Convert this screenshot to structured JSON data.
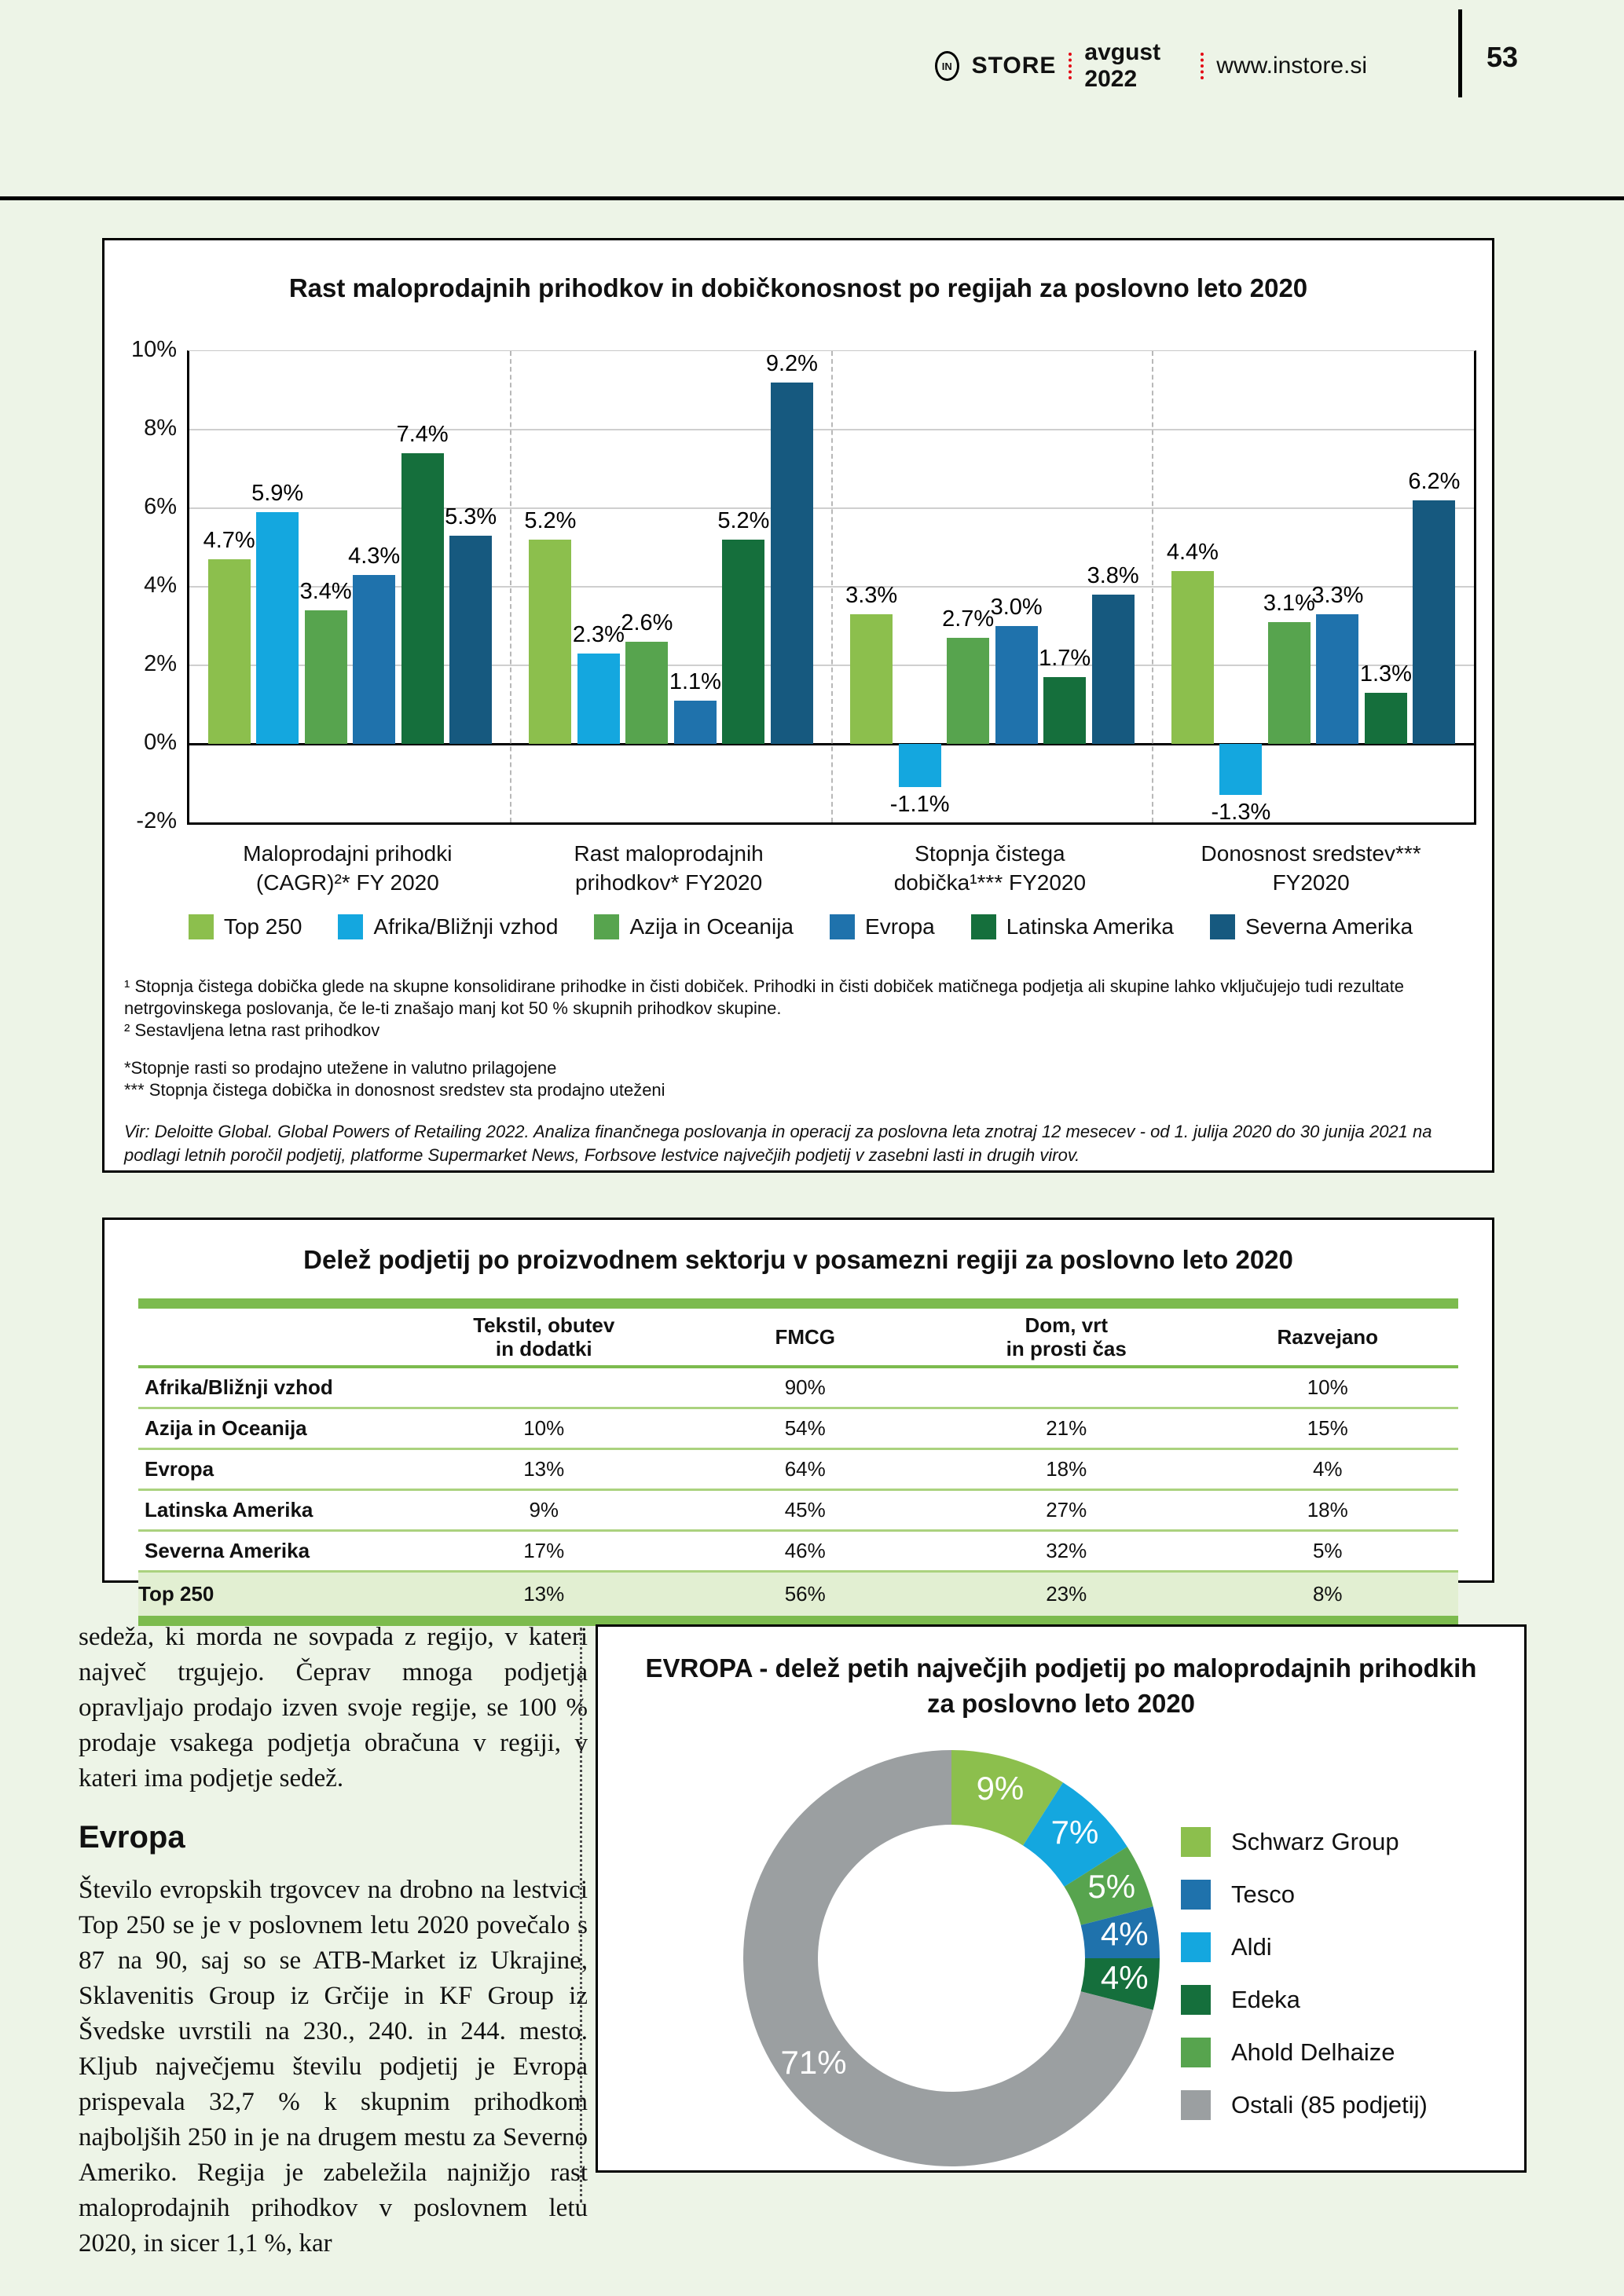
{
  "header": {
    "logo_text": "IN",
    "brand": "STORE",
    "date": "avgust 2022",
    "website": "www.instore.si",
    "page_number": "53"
  },
  "chart_data": [
    {
      "type": "bar",
      "title": "Rast maloprodajnih prihodkov in dobičkonosnost po regijah za poslovno leto 2020",
      "categories": [
        [
          "Maloprodajni prihodki",
          "(CAGR)²* FY 2020"
        ],
        [
          "Rast maloprodajnih",
          "prihodkov* FY2020"
        ],
        [
          "Stopnja čistega",
          "dobička¹*** FY2020"
        ],
        [
          "Donosnost sredstev***",
          "FY2020"
        ]
      ],
      "series": [
        {
          "name": "Top 250",
          "color": "#8CBF4D",
          "values": [
            4.7,
            5.2,
            3.3,
            4.4
          ]
        },
        {
          "name": "Afrika/Bližnji vzhod",
          "color": "#14A7DF",
          "values": [
            5.9,
            2.3,
            -1.1,
            -1.3
          ]
        },
        {
          "name": "Azija in Oceanija",
          "color": "#57A44E",
          "values": [
            3.4,
            2.6,
            2.7,
            3.1
          ]
        },
        {
          "name": "Evropa",
          "color": "#1F72AC",
          "values": [
            4.3,
            1.1,
            3.0,
            3.3
          ]
        },
        {
          "name": "Latinska Amerika",
          "color": "#156F3C",
          "values": [
            7.4,
            5.2,
            1.7,
            1.3
          ]
        },
        {
          "name": "Severna Amerika",
          "color": "#16597F",
          "values": [
            5.3,
            9.2,
            3.8,
            6.2
          ]
        }
      ],
      "ylim": [
        -2,
        10
      ],
      "yticks": [
        10,
        8,
        6,
        4,
        2,
        0,
        -2
      ],
      "unit": "%",
      "grid": true,
      "legend_position": "bottom"
    },
    {
      "type": "pie",
      "subtype": "donut",
      "title_line1": "EVROPA - delež petih največjih podjetij po maloprodajnih prihodkih",
      "title_line2": "za poslovno leto 2020",
      "slices": [
        {
          "name": "Schwarz Group",
          "value": 9,
          "color": "#8CBF4D"
        },
        {
          "name": "Aldi",
          "value": 7,
          "color": "#14A7DF"
        },
        {
          "name": "Ahold Delhaize",
          "value": 5,
          "color": "#57A44E"
        },
        {
          "name": "Tesco",
          "value": 4,
          "color": "#1F72AC"
        },
        {
          "name": "Edeka",
          "value": 4,
          "color": "#156F3C"
        },
        {
          "name": "Ostali (85 podjetij)",
          "value": 71,
          "color": "#9B9FA1"
        }
      ],
      "legend": [
        {
          "label": "Schwarz Group",
          "color": "#8CBF4D"
        },
        {
          "label": "Tesco",
          "color": "#1F72AC"
        },
        {
          "label": "Aldi",
          "color": "#14A7DF"
        },
        {
          "label": "Edeka",
          "color": "#156F3C"
        },
        {
          "label": "Ahold Delhaize",
          "color": "#57A44E"
        },
        {
          "label": "Ostali (85 podjetij)",
          "color": "#9B9FA1"
        }
      ],
      "unit": "%",
      "legend_position": "right"
    }
  ],
  "chart_footer": {
    "footnotes": [
      "¹ Stopnja čistega dobička glede na skupne konsolidirane prihodke in čisti dobiček. Prihodki in čisti dobiček matičnega podjetja ali skupine lahko vključujejo tudi rezultate netrgovinskega poslovanja, če le-ti znašajo manj kot 50 % skupnih prihodkov skupine.",
      "² Sestavljena letna rast prihodkov",
      "*Stopnje rasti so prodajno utežene in valutno prilagojene",
      "*** Stopnja čistega dobička in donosnost sredstev sta prodajno uteženi"
    ],
    "source": "Vir: Deloitte Global. Global Powers of Retailing 2022. Analiza finančnega poslovanja in operacij za poslovna leta znotraj 12 mesecev - od 1. julija 2020 do 30 junija 2021 na podlagi letnih poročil podjetij, platforme Supermarket News, Forbsove lestvice največjih podjetij v zasebni lasti in drugih virov."
  },
  "table": {
    "title": "Delež podjetij po proizvodnem sektorju v posamezni regiji za poslovno leto 2020",
    "columns": [
      [
        "Tekstil, obutev",
        "in dodatki"
      ],
      [
        "FMCG"
      ],
      [
        "Dom, vrt",
        "in prosti čas"
      ],
      [
        "Razvejano"
      ]
    ],
    "rows": [
      {
        "region": "Afrika/Bližnji vzhod",
        "values": [
          "",
          "90%",
          "",
          "10%"
        ],
        "highlight": false
      },
      {
        "region": "Azija in Oceanija",
        "values": [
          "10%",
          "54%",
          "21%",
          "15%"
        ],
        "highlight": false
      },
      {
        "region": "Evropa",
        "values": [
          "13%",
          "64%",
          "18%",
          "4%"
        ],
        "highlight": false
      },
      {
        "region": "Latinska Amerika",
        "values": [
          "9%",
          "45%",
          "27%",
          "18%"
        ],
        "highlight": false
      },
      {
        "region": "Severna Amerika",
        "values": [
          "17%",
          "46%",
          "32%",
          "5%"
        ],
        "highlight": false
      },
      {
        "region": "Top 250",
        "values": [
          "13%",
          "56%",
          "23%",
          "8%"
        ],
        "highlight": true
      }
    ]
  },
  "article": {
    "paragraph_1": "sedeža, ki morda ne sovpada z regijo, v kateri največ trgujejo. Čeprav mnoga podjetja opravljajo prodajo izven svoje regije, se 100 % prodaje vsakega podjetja obračuna v regiji, v kateri ima podjetje sedež.",
    "heading": "Evropa",
    "paragraph_2": "Število evropskih trgovcev na drobno na lestvici Top 250 se je v poslovnem letu 2020 povečalo s 87 na 90, saj so se ATB-Market iz Ukrajine, Sklavenitis Group iz Grčije in KF Group iz Švedske uvrstili na 230., 240. in 244. mesto. Kljub največjemu številu podjetij je Evropa prispevala 32,7 % k skupnim prihodkom najboljših 250 in je na drugem mestu za Severno Ameriko. Regija je zabeležila najnižjo rast maloprodajnih prihodkov v poslovnem letu 2020, in sicer 1,1 %, kar"
  },
  "colors": {
    "page_background": "#edf4e7",
    "accent_green": "#7cbb4e",
    "row_separator_green": "#abd27f",
    "highlight_row": "#e2efd2",
    "header_dots_red": "#e30613"
  }
}
